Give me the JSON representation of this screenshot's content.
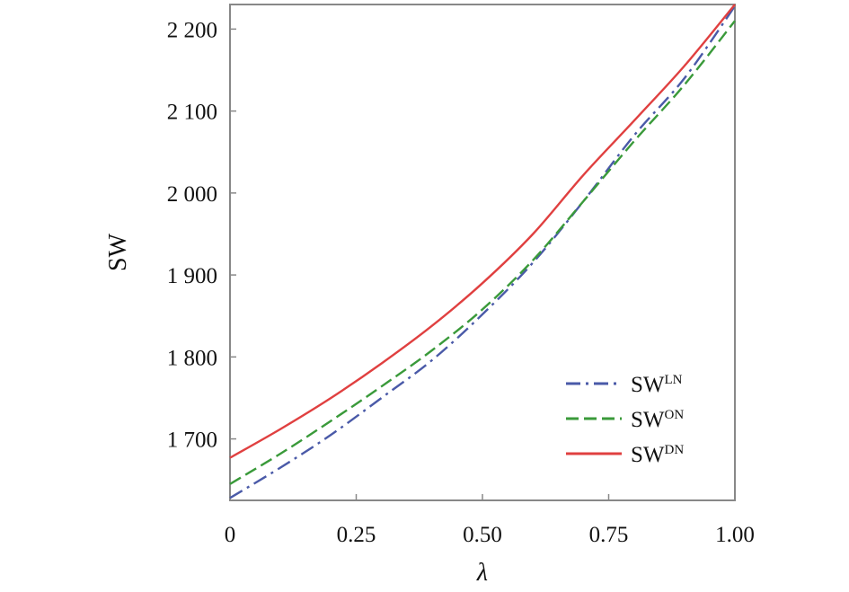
{
  "chart_data": {
    "type": "line",
    "xlabel": "λ",
    "ylabel": "SW",
    "xlim": [
      0,
      1
    ],
    "ylim": [
      1625,
      2230
    ],
    "x_ticks": [
      {
        "value": 0,
        "label": "0"
      },
      {
        "value": 0.25,
        "label": "0.25"
      },
      {
        "value": 0.5,
        "label": "0.50"
      },
      {
        "value": 0.75,
        "label": "0.75"
      },
      {
        "value": 1.0,
        "label": "1.00"
      }
    ],
    "y_ticks": [
      {
        "value": 1700,
        "label": "1 700"
      },
      {
        "value": 1800,
        "label": "1 800"
      },
      {
        "value": 1900,
        "label": "1 900"
      },
      {
        "value": 2000,
        "label": "2 000"
      },
      {
        "value": 2100,
        "label": "2 100"
      },
      {
        "value": 2200,
        "label": "2 200"
      }
    ],
    "grid": false,
    "legend_position": "bottom-right",
    "x": [
      0,
      0.1,
      0.2,
      0.3,
      0.4,
      0.5,
      0.6,
      0.7,
      0.8,
      0.9,
      1.0
    ],
    "series": [
      {
        "name": "SW",
        "name_sup": "LN",
        "color": "#4a5aa8",
        "dash": "dash-dot",
        "values": [
          1628,
          1665,
          1705,
          1750,
          1796,
          1852,
          1915,
          1990,
          2070,
          2140,
          2228
        ]
      },
      {
        "name": "SW",
        "name_sup": "ON",
        "color": "#3a9a3a",
        "dash": "dashed",
        "values": [
          1645,
          1682,
          1722,
          1764,
          1808,
          1858,
          1918,
          1990,
          2063,
          2132,
          2210
        ]
      },
      {
        "name": "SW",
        "name_sup": "DN",
        "color": "#e04040",
        "dash": "solid",
        "values": [
          1677,
          1712,
          1750,
          1792,
          1838,
          1890,
          1950,
          2022,
          2088,
          2155,
          2230
        ]
      }
    ]
  }
}
